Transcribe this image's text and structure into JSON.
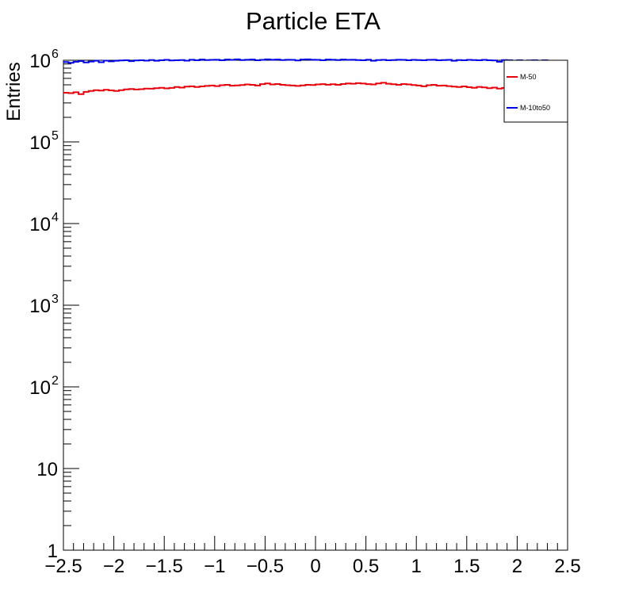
{
  "chart_data": {
    "type": "line",
    "title": "Particle ETA",
    "xlabel": "",
    "ylabel": "Entries",
    "xlim": [
      -2.5,
      2.5
    ],
    "ylim": [
      1,
      1000000
    ],
    "yscale": "log",
    "grid": false,
    "legend_position": "top-right",
    "x_tick_labels": [
      "−2.5",
      "−2",
      "−1.5",
      "−1",
      "−0.5",
      "0",
      "0.5",
      "1",
      "1.5",
      "2",
      "2.5"
    ],
    "x_ticks": [
      -2.5,
      -2,
      -1.5,
      -1,
      -0.5,
      0,
      0.5,
      1,
      1.5,
      2,
      2.5
    ],
    "y_ticks": [
      {
        "value": 1,
        "base": "1",
        "exp": ""
      },
      {
        "value": 10,
        "base": "10",
        "exp": ""
      },
      {
        "value": 100,
        "base": "10",
        "exp": "2"
      },
      {
        "value": 1000,
        "base": "10",
        "exp": "3"
      },
      {
        "value": 10000,
        "base": "10",
        "exp": "4"
      },
      {
        "value": 100000,
        "base": "10",
        "exp": "5"
      },
      {
        "value": 1000000,
        "base": "10",
        "exp": "6"
      }
    ],
    "bins": 100,
    "series": [
      {
        "name": "M-50",
        "color": "#e8000b",
        "values": [
          400000,
          395000,
          405000,
          385000,
          410000,
          420000,
          430000,
          425000,
          435000,
          428000,
          420000,
          430000,
          440000,
          445000,
          438000,
          442000,
          450000,
          448000,
          455000,
          460000,
          452000,
          458000,
          470000,
          462000,
          475000,
          480000,
          470000,
          478000,
          485000,
          490000,
          482000,
          495000,
          500000,
          488000,
          492000,
          498000,
          505000,
          500000,
          490000,
          510000,
          520000,
          505000,
          512000,
          500000,
          495000,
          490000,
          485000,
          492000,
          500000,
          498000,
          505000,
          510000,
          502000,
          508000,
          500000,
          512000,
          520000,
          515000,
          525000,
          518000,
          510000,
          505000,
          520000,
          530000,
          515000,
          508000,
          500000,
          512000,
          505000,
          498000,
          490000,
          480000,
          495000,
          500000,
          488000,
          490000,
          482000,
          475000,
          470000,
          478000,
          468000,
          460000,
          472000,
          465000,
          455000,
          462000,
          450000,
          458000,
          465000,
          470000,
          455000,
          450000,
          460000,
          465000,
          452000,
          440000,
          445000,
          438000,
          430000,
          425000
        ]
      },
      {
        "name": "M-10to50",
        "color": "#0000e6",
        "values": [
          950000,
          930000,
          960000,
          975000,
          940000,
          965000,
          985000,
          945000,
          990000,
          970000,
          985000,
          995000,
          1000000,
          975000,
          995000,
          1000000,
          990000,
          1005000,
          985000,
          1000000,
          1010000,
          995000,
          1000000,
          1005000,
          990000,
          1015000,
          1000000,
          1020000,
          1005000,
          1010000,
          1015000,
          1000000,
          1020000,
          1010000,
          1025000,
          1005000,
          1015000,
          1020000,
          1000000,
          1010000,
          1025000,
          1015000,
          1020000,
          1005000,
          1015000,
          1010000,
          995000,
          1020000,
          1025000,
          1015000,
          1010000,
          1000000,
          1020000,
          1015000,
          1005000,
          1020000,
          1010000,
          1015000,
          1005000,
          1000000,
          1015000,
          985000,
          1005000,
          1010000,
          1000000,
          1005000,
          1015000,
          1010000,
          1000000,
          1010000,
          1005000,
          1000000,
          1010000,
          1015000,
          1000000,
          1005000,
          1010000,
          985000,
          1005000,
          1000000,
          1010000,
          1005000,
          1000000,
          1010000,
          1000000,
          995000,
          960000,
          1005000,
          1000000,
          990000,
          1000000,
          975000,
          995000,
          1000000,
          990000,
          1000000,
          985000,
          980000,
          990000,
          975000
        ]
      }
    ]
  }
}
